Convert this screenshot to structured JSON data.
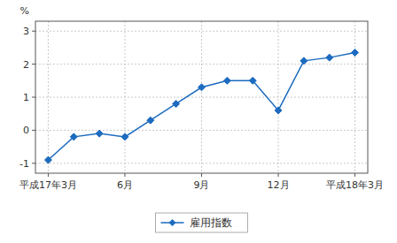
{
  "chart_data": {
    "type": "line",
    "y_label": "%",
    "categories": [
      "平成17年3月",
      null,
      null,
      "6月",
      null,
      null,
      "9月",
      null,
      null,
      "12月",
      null,
      null,
      "平成18年3月"
    ],
    "series": [
      {
        "name": "雇用指数",
        "color": "#1c6bbf",
        "marker": "diamond",
        "values": [
          -0.9,
          -0.2,
          -0.1,
          -0.2,
          0.3,
          0.8,
          1.3,
          1.5,
          1.5,
          0.6,
          2.1,
          2.2,
          2.35
        ]
      }
    ],
    "ylim": [
      -1.3,
      3.3
    ],
    "yticks": [
      -1,
      0,
      1,
      2,
      3
    ],
    "grid": true,
    "legend": "bottom"
  }
}
